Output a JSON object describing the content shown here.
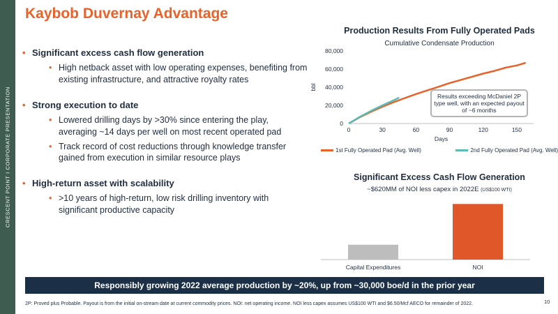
{
  "sidebar": {
    "text": "CRESCENT POINT   I   CORPORATE PRESENTATION"
  },
  "title": "Kaybob Duvernay Advantage",
  "bullets": [
    {
      "text": "Significant excess cash flow generation",
      "subs": [
        "High netback asset with low operating expenses, benefiting from existing infrastructure, and attractive royalty rates"
      ]
    },
    {
      "text": "Strong execution to date",
      "subs": [
        "Lowered drilling days by >30% since entering the play, averaging ~14 days per well on most recent operated pad",
        "Track record of cost reductions through knowledge transfer gained from execution in similar resource plays"
      ]
    },
    {
      "text": "High-return asset with scalability",
      "subs": [
        "&gt;10 years of high-return, low risk drilling inventory with significant productive capacity"
      ]
    }
  ],
  "bullet_glyph": "•",
  "chart_data": [
    {
      "type": "line",
      "title": "Production Results From Fully Operated Pads",
      "subtitle": "Cumulative Condensate Production",
      "xlabel": "Days",
      "ylabel": "bbl",
      "xlim": [
        0,
        165
      ],
      "ylim": [
        0,
        80000
      ],
      "xticks": [
        "0",
        "30",
        "60",
        "90",
        "120",
        "150"
      ],
      "yticks": [
        "0",
        "20,000",
        "40,000",
        "60,000",
        "80,000"
      ],
      "series": [
        {
          "name": "1st Fully Operated Pad (Avg. Well)",
          "color": "#e8622a",
          "x": [
            0,
            10,
            20,
            30,
            40,
            50,
            60,
            70,
            80,
            90,
            100,
            110,
            120,
            130,
            140,
            150,
            158
          ],
          "y": [
            0,
            7000,
            13000,
            18500,
            23500,
            28000,
            32500,
            36500,
            40500,
            44500,
            48000,
            51500,
            55000,
            58000,
            61500,
            64000,
            67000
          ]
        },
        {
          "name": "2nd Fully Operated Pad (Avg. Well)",
          "color": "#5bbcb6",
          "x": [
            0,
            10,
            20,
            30,
            40,
            45
          ],
          "y": [
            0,
            7500,
            14000,
            20000,
            25500,
            28500
          ]
        }
      ],
      "annotation": "Results exceeding McDaniel 2P type well, with an expected payout of ~6 months",
      "legend": "bottom"
    },
    {
      "type": "bar",
      "title": "Significant Excess Cash Flow Generation",
      "subtitle": "~$620MM of NOI less capex in 2022E",
      "subtitle_small": "(US$100 WTI)",
      "categories": [
        "Capital Expenditures",
        "NOI"
      ],
      "values": [
        20,
        75
      ],
      "colors": [
        "#bdbdbd",
        "#e0572a"
      ],
      "ylim": [
        0,
        80
      ]
    }
  ],
  "banner": "Responsibly growing 2022 average production by ~20%, up from ~30,000 boe/d in the prior year",
  "page_number": "10",
  "footnote": "2P: Proved plus Probable. Payout is from the initial on-stream date at current commodity prices. NOI: net operating income. NOI less capex assumes US$100 WTI and $6.50/Mcf AECO for remainder of 2022."
}
